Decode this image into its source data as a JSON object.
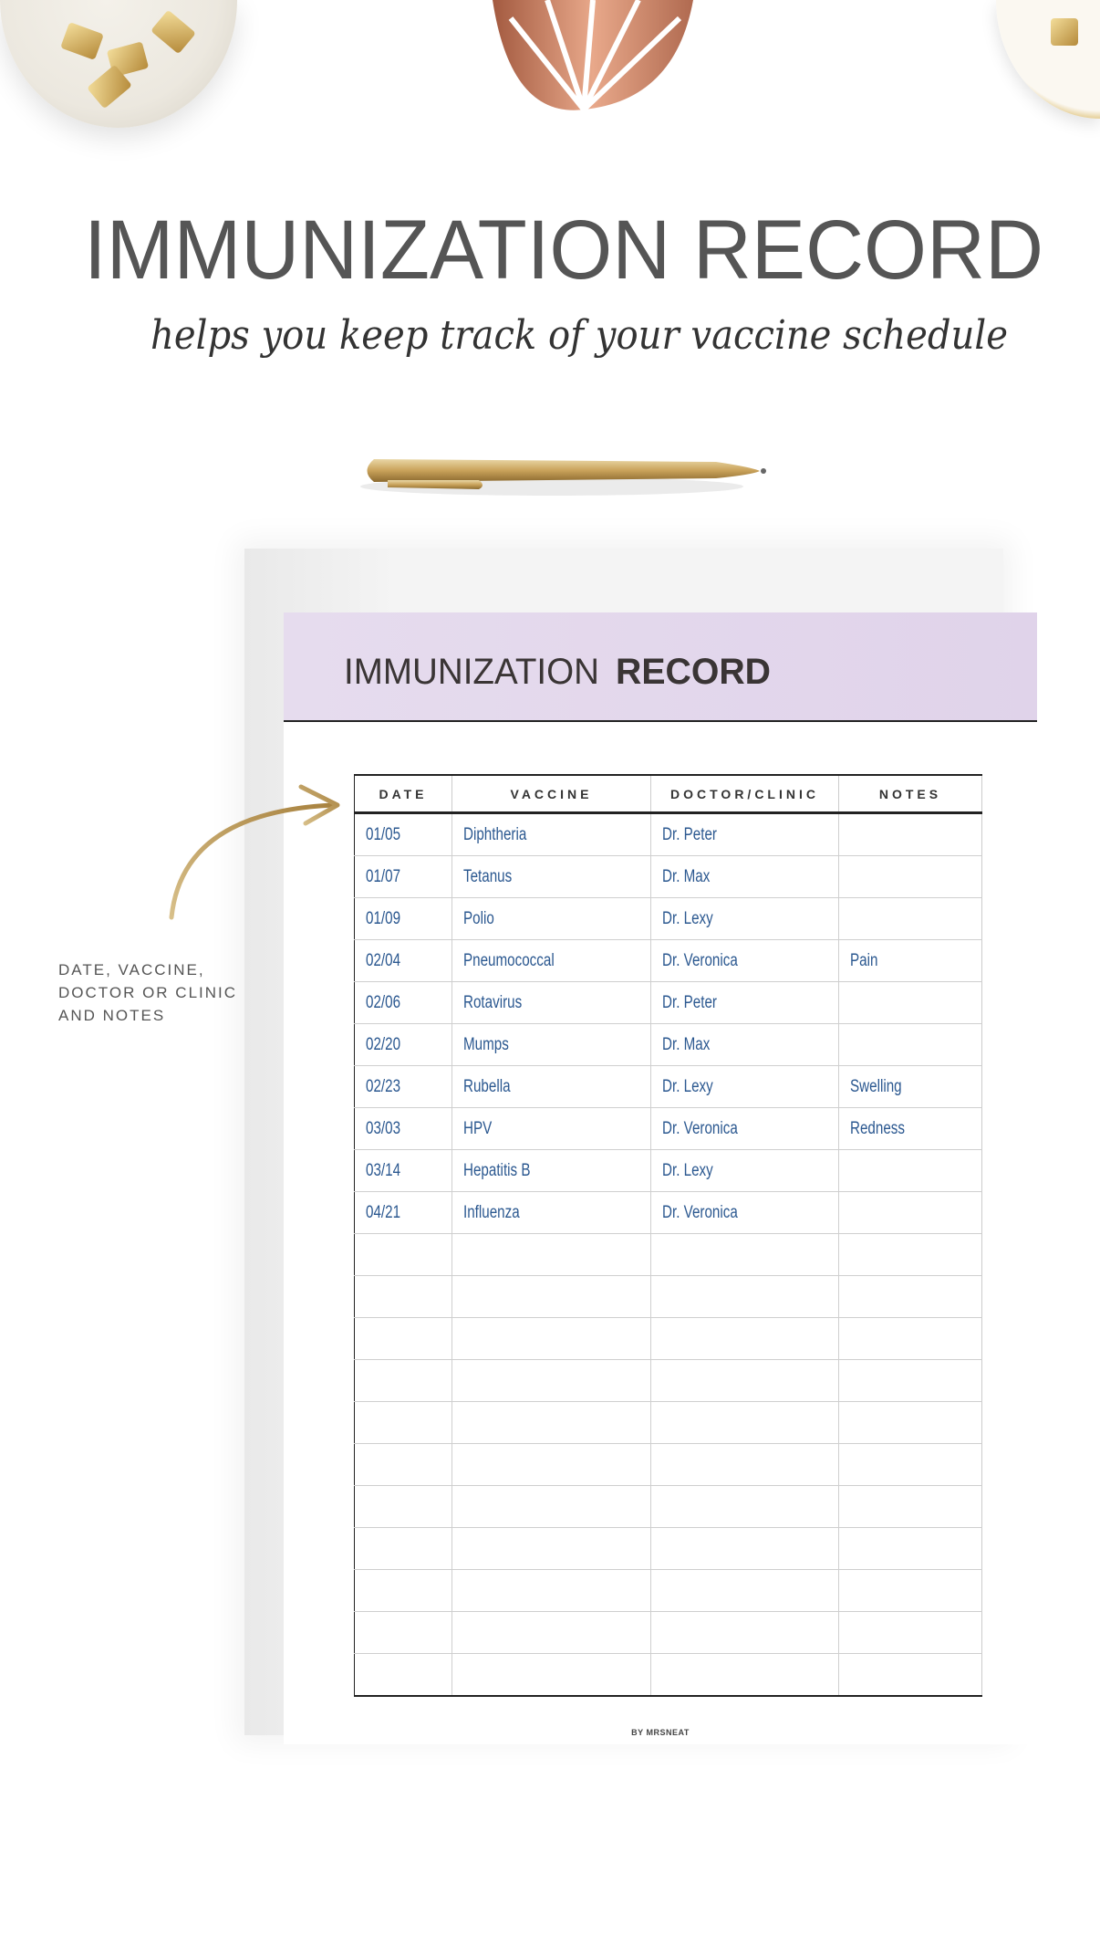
{
  "hero": {
    "title": "IMMUNIZATION RECORD",
    "subtitle": "helps you keep track of your vaccine schedule"
  },
  "side_note": {
    "lines": [
      "DATE, VACCINE,",
      "DOCTOR OR CLINIC",
      "AND NOTES"
    ]
  },
  "sheet": {
    "title_light": "IMMUNIZATION",
    "title_bold": "RECORD",
    "columns": [
      "DATE",
      "VACCINE",
      "DOCTOR/CLINIC",
      "NOTES"
    ],
    "rows": [
      [
        "01/05",
        "Diphtheria",
        "Dr. Peter",
        ""
      ],
      [
        "01/07",
        "Tetanus",
        "Dr. Max",
        ""
      ],
      [
        "01/09",
        "Polio",
        "Dr. Lexy",
        ""
      ],
      [
        "02/04",
        "Pneumococcal",
        "Dr. Veronica",
        "Pain"
      ],
      [
        "02/06",
        "Rotavirus",
        "Dr. Peter",
        ""
      ],
      [
        "02/20",
        "Mumps",
        "Dr. Max",
        ""
      ],
      [
        "02/23",
        "Rubella",
        "Dr. Lexy",
        "Swelling"
      ],
      [
        "03/03",
        "HPV",
        "Dr. Veronica",
        "Redness"
      ],
      [
        "03/14",
        "Hepatitis B",
        "Dr. Lexy",
        ""
      ],
      [
        "04/21",
        "Influenza",
        "Dr. Veronica",
        ""
      ]
    ],
    "empty_rows": 11,
    "footer": "BY MRSNEAT"
  },
  "colors": {
    "banner": "#e2d6ec",
    "handwriting": "#2b5890",
    "gold": "#c9a25a"
  }
}
